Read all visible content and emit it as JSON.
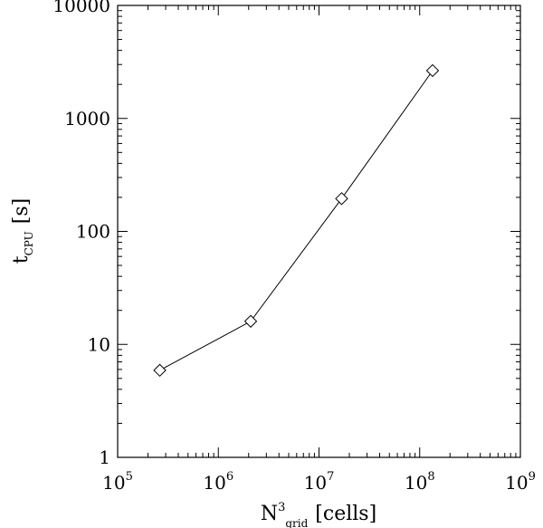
{
  "chart_data": {
    "type": "line",
    "title": "",
    "x_scale": "log",
    "y_scale": "log",
    "xlim": [
      100000,
      1000000000
    ],
    "ylim": [
      1,
      10000
    ],
    "x_ticks": [
      100000,
      1000000,
      10000000,
      100000000,
      1000000000
    ],
    "y_ticks": [
      1,
      10,
      100,
      1000,
      10000
    ],
    "x_tick_labels": [
      {
        "base": "10",
        "exp": "5"
      },
      {
        "base": "10",
        "exp": "6"
      },
      {
        "base": "10",
        "exp": "7"
      },
      {
        "base": "10",
        "exp": "8"
      },
      {
        "base": "10",
        "exp": "9"
      }
    ],
    "y_tick_labels": [
      "1",
      "10",
      "100",
      "1000",
      "10000"
    ],
    "xlabel": {
      "main": "N",
      "sup": "3",
      "sub": "grid",
      "unit": "[cells]"
    },
    "ylabel": {
      "main": "t",
      "sub": "CPU",
      "unit": "[s]"
    },
    "grid": false,
    "marker": "diamond",
    "series": [
      {
        "x": [
          262144,
          2097152,
          16777216,
          134217728
        ],
        "y": [
          5.9,
          16,
          195,
          2650
        ]
      }
    ]
  }
}
